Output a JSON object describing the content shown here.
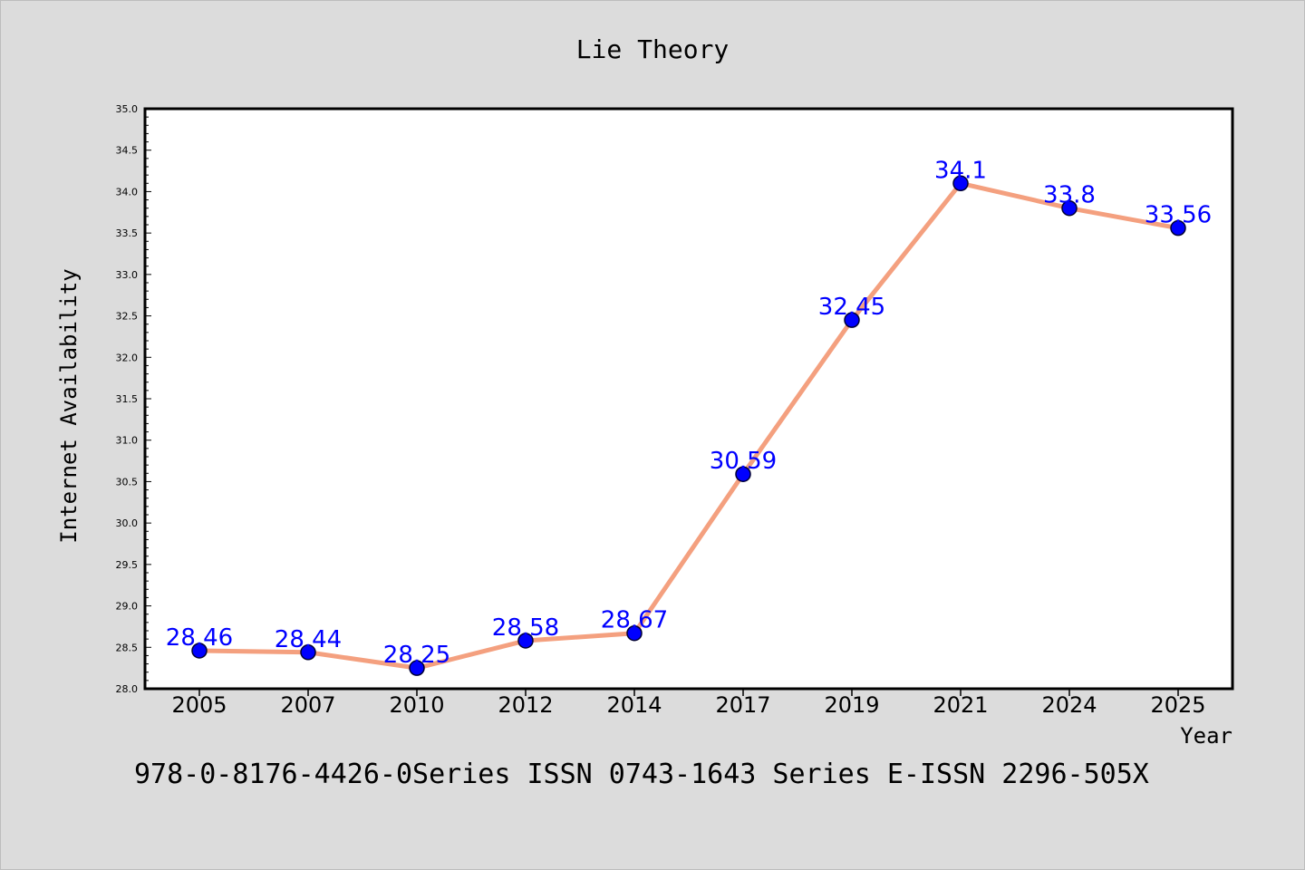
{
  "chart_data": {
    "type": "line",
    "title": "Lie Theory",
    "xlabel": "Year",
    "ylabel": "Internet Availability",
    "footer": "978-0-8176-4426-0Series ISSN 0743-1643 Series E-ISSN 2296-505X",
    "categories": [
      "2005",
      "2007",
      "2010",
      "2012",
      "2014",
      "2017",
      "2019",
      "2021",
      "2024",
      "2025"
    ],
    "values": [
      28.46,
      28.44,
      28.25,
      28.58,
      28.67,
      30.59,
      32.45,
      34.1,
      33.8,
      33.56
    ],
    "data_labels": [
      "28.46",
      "28.44",
      "28.25",
      "28.58",
      "28.67",
      "30.59",
      "32.45",
      "34.1",
      "33.8",
      "33.56"
    ],
    "ylim": [
      28.0,
      35.0
    ],
    "yticks": [
      "28.0",
      "28.5",
      "29.0",
      "29.5",
      "30.0",
      "30.5",
      "31.0",
      "31.5",
      "32.0",
      "32.5",
      "33.0",
      "33.5",
      "34.0",
      "34.5",
      "35.0"
    ],
    "grid": false,
    "colors": {
      "background": "#dcdcdc",
      "plot_background": "#ffffff",
      "line": "#f4a07f",
      "marker": "#0000ff",
      "label": "#0000ff"
    }
  }
}
